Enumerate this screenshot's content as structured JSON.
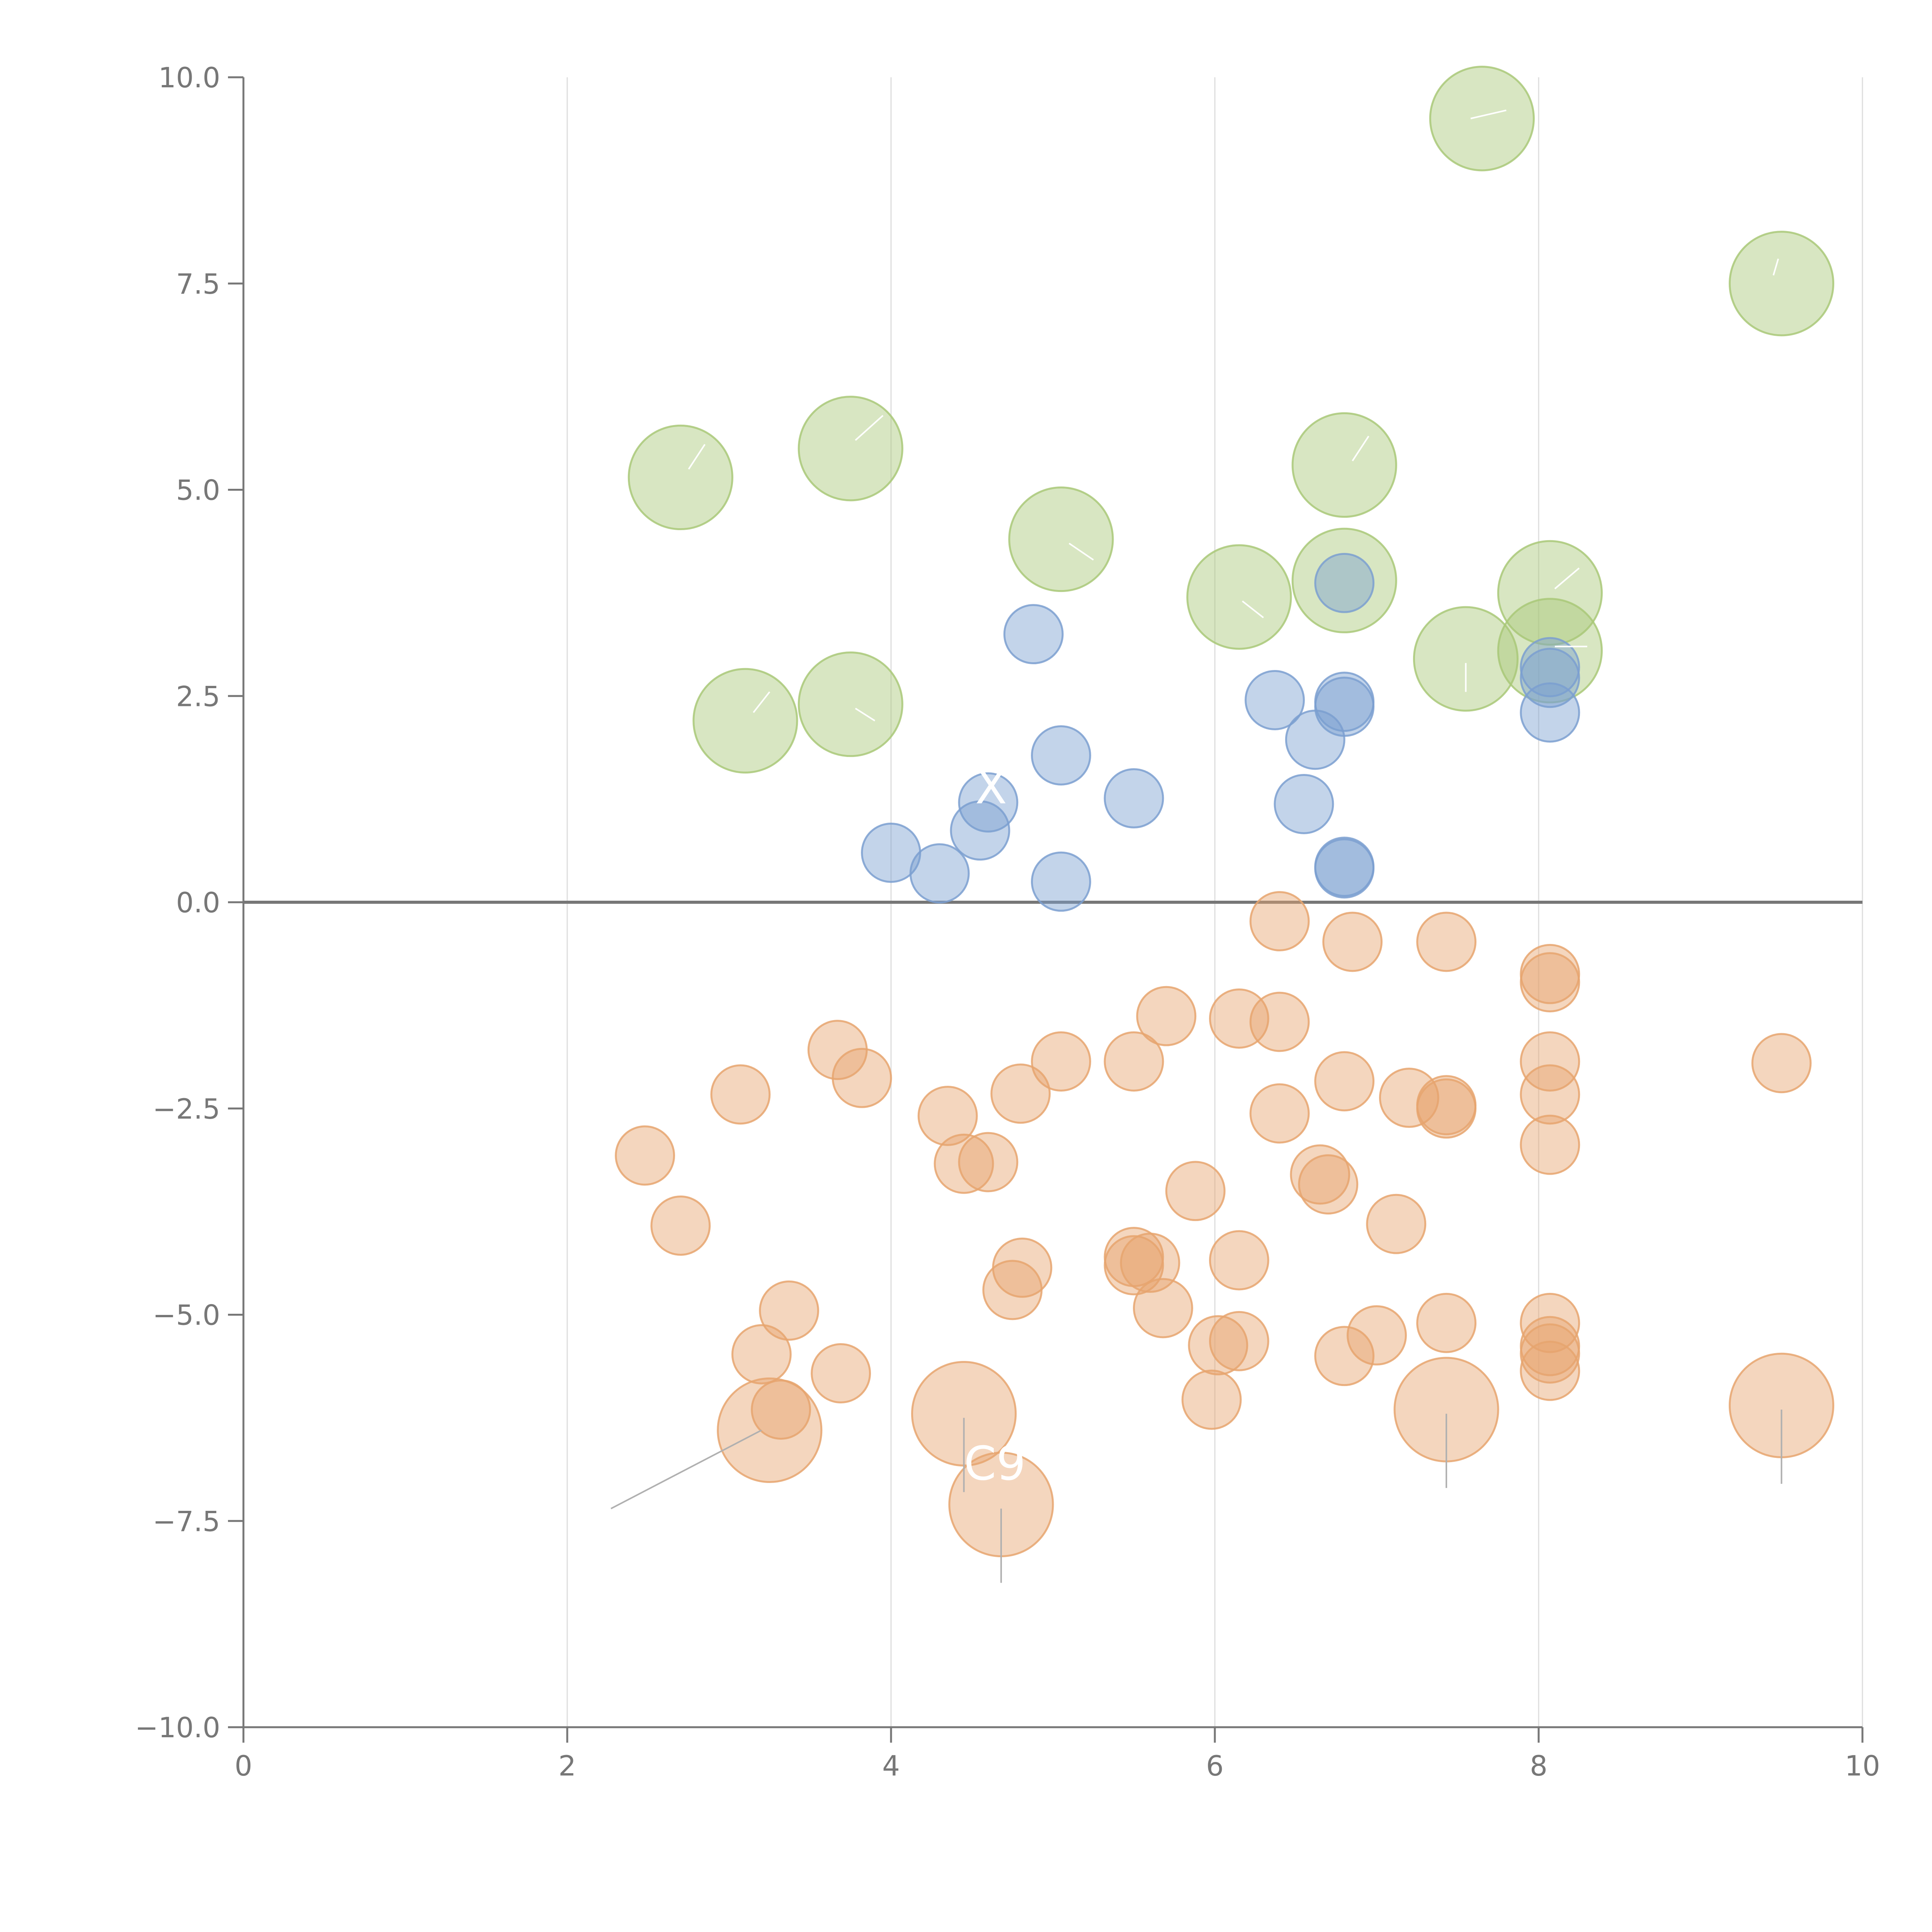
{
  "chart_data": {
    "type": "scatter",
    "title": "",
    "xlabel": "",
    "ylabel": "",
    "xlim": [
      0,
      10
    ],
    "ylim": [
      -10,
      10
    ],
    "x_ticks": [
      "0",
      "2",
      "4",
      "6",
      "8",
      "10"
    ],
    "y_ticks": [
      "10.0",
      "7.5",
      "5.0",
      "2.5",
      "0.0",
      "−2.5",
      "−5.0",
      "−7.5",
      "−10.0"
    ],
    "y_tick_values": [
      10,
      7.5,
      5,
      2.5,
      0,
      -2.5,
      -5,
      -7.5,
      -10
    ],
    "x_tick_values": [
      0,
      2,
      4,
      6,
      8,
      10
    ],
    "grid_x": true,
    "zero_line": 0,
    "colors": {
      "green": "#a9c878",
      "blue": "#7b9fd0",
      "orange": "#e6a46e",
      "axis": "#777777",
      "grid": "#dddddd"
    },
    "series": [
      {
        "name": "green",
        "color": "#a9c878",
        "size": 3.2,
        "points": [
          [
            7.65,
            9.5
          ],
          [
            9.5,
            7.5
          ],
          [
            2.7,
            5.15
          ],
          [
            3.75,
            5.5
          ],
          [
            6.8,
            5.3
          ],
          [
            5.05,
            4.4
          ],
          [
            6.15,
            3.7
          ],
          [
            6.8,
            3.9
          ],
          [
            8.07,
            3.75
          ],
          [
            8.07,
            3.05
          ],
          [
            7.55,
            2.95
          ],
          [
            3.1,
            2.2
          ],
          [
            3.75,
            2.4
          ]
        ]
      },
      {
        "name": "blue",
        "color": "#7b9fd0",
        "size": 1.8,
        "points": [
          [
            6.8,
            3.87
          ],
          [
            4.88,
            3.25
          ],
          [
            8.07,
            2.85
          ],
          [
            8.07,
            2.72
          ],
          [
            6.37,
            2.45
          ],
          [
            6.8,
            2.43
          ],
          [
            6.8,
            2.37
          ],
          [
            6.62,
            1.97
          ],
          [
            8.07,
            2.3
          ],
          [
            5.05,
            1.78
          ],
          [
            5.5,
            1.26
          ],
          [
            4.6,
            1.21
          ],
          [
            6.55,
            1.19
          ],
          [
            4.55,
            0.87
          ],
          [
            4.0,
            0.6
          ],
          [
            4.3,
            0.35
          ],
          [
            5.05,
            0.25
          ],
          [
            6.8,
            0.43
          ],
          [
            6.8,
            0.41
          ]
        ]
      },
      {
        "name": "orange",
        "color": "#e6a46e",
        "size": 1.8,
        "points": [
          [
            6.4,
            -0.23
          ],
          [
            6.85,
            -0.48
          ],
          [
            7.43,
            -0.48
          ],
          [
            8.07,
            -0.87
          ],
          [
            8.07,
            -0.97
          ],
          [
            5.7,
            -1.38
          ],
          [
            6.15,
            -1.41
          ],
          [
            6.4,
            -1.45
          ],
          [
            3.67,
            -1.79
          ],
          [
            3.82,
            -2.13
          ],
          [
            5.05,
            -1.93
          ],
          [
            5.5,
            -1.93
          ],
          [
            8.07,
            -1.93
          ],
          [
            9.5,
            -1.95
          ],
          [
            3.07,
            -2.33
          ],
          [
            4.8,
            -2.32
          ],
          [
            6.8,
            -2.17
          ],
          [
            7.2,
            -2.37
          ],
          [
            8.07,
            -2.33
          ],
          [
            7.43,
            -2.46
          ],
          [
            7.43,
            -2.5
          ],
          [
            4.35,
            -2.59
          ],
          [
            6.4,
            -2.56
          ],
          [
            8.07,
            -2.94
          ],
          [
            2.48,
            -3.07
          ],
          [
            4.45,
            -3.17
          ],
          [
            4.6,
            -3.15
          ],
          [
            6.65,
            -3.3
          ],
          [
            6.7,
            -3.42
          ],
          [
            5.88,
            -3.5
          ],
          [
            2.7,
            -3.92
          ],
          [
            7.12,
            -3.9
          ],
          [
            5.5,
            -4.3
          ],
          [
            5.5,
            -4.4
          ],
          [
            5.6,
            -4.37
          ],
          [
            6.15,
            -4.34
          ],
          [
            4.81,
            -4.43
          ],
          [
            4.75,
            -4.7
          ],
          [
            3.37,
            -4.95
          ],
          [
            5.68,
            -4.92
          ],
          [
            7.43,
            -5.1
          ],
          [
            8.07,
            -5.1
          ],
          [
            7.0,
            -5.25
          ],
          [
            8.07,
            -5.38
          ],
          [
            6.02,
            -5.37
          ],
          [
            6.15,
            -5.32
          ],
          [
            3.2,
            -5.48
          ],
          [
            6.8,
            -5.5
          ],
          [
            8.07,
            -5.47
          ],
          [
            8.07,
            -5.68
          ],
          [
            3.69,
            -5.71
          ],
          [
            5.98,
            -6.03
          ],
          [
            3.32,
            -6.15
          ]
        ]
      },
      {
        "name": "orange-large",
        "color": "#e6a46e",
        "size": 3.2,
        "points": [
          [
            3.25,
            -6.4
          ],
          [
            4.45,
            -6.2
          ],
          [
            7.43,
            -6.15
          ],
          [
            9.5,
            -6.1
          ],
          [
            4.68,
            -7.3
          ]
        ]
      }
    ],
    "annotations": [
      {
        "text": "C9",
        "x": 4.45,
        "y": -7.0,
        "color": "#ffffff"
      },
      {
        "text": "X",
        "x": 4.52,
        "y": 1.2,
        "color": "#ffffff"
      }
    ],
    "leader_lines": [
      {
        "from": [
          3.2,
          -6.4
        ],
        "to": [
          2.27,
          -7.35
        ],
        "color": "#b0b0b0"
      },
      {
        "from": [
          4.45,
          -6.25
        ],
        "to": [
          4.45,
          -7.15
        ],
        "color": "#b0b0b0"
      },
      {
        "from": [
          4.68,
          -7.35
        ],
        "to": [
          4.68,
          -8.25
        ],
        "color": "#b0b0b0"
      },
      {
        "from": [
          7.43,
          -6.2
        ],
        "to": [
          7.43,
          -7.1
        ],
        "color": "#b0b0b0"
      },
      {
        "from": [
          9.5,
          -6.15
        ],
        "to": [
          9.5,
          -7.05
        ],
        "color": "#b0b0b0"
      },
      {
        "from": [
          7.58,
          9.5
        ],
        "to": [
          7.8,
          9.6
        ],
        "color": "#ffffff"
      },
      {
        "from": [
          9.48,
          7.8
        ],
        "to": [
          9.45,
          7.6
        ],
        "color": "#ffffff"
      },
      {
        "from": [
          2.75,
          5.25
        ],
        "to": [
          2.85,
          5.55
        ],
        "color": "#ffffff"
      },
      {
        "from": [
          3.78,
          5.6
        ],
        "to": [
          3.95,
          5.9
        ],
        "color": "#ffffff"
      },
      {
        "from": [
          6.85,
          5.35
        ],
        "to": [
          6.95,
          5.65
        ],
        "color": "#ffffff"
      },
      {
        "from": [
          5.1,
          4.35
        ],
        "to": [
          5.25,
          4.15
        ],
        "color": "#ffffff"
      },
      {
        "from": [
          6.17,
          3.65
        ],
        "to": [
          6.3,
          3.45
        ],
        "color": "#ffffff"
      },
      {
        "from": [
          8.1,
          3.8
        ],
        "to": [
          8.25,
          4.05
        ],
        "color": "#ffffff"
      },
      {
        "from": [
          8.1,
          3.1
        ],
        "to": [
          8.3,
          3.1
        ],
        "color": "#ffffff"
      },
      {
        "from": [
          7.55,
          2.9
        ],
        "to": [
          7.55,
          2.55
        ],
        "color": "#ffffff"
      },
      {
        "from": [
          3.15,
          2.3
        ],
        "to": [
          3.25,
          2.55
        ],
        "color": "#ffffff"
      },
      {
        "from": [
          3.78,
          2.35
        ],
        "to": [
          3.9,
          2.2
        ],
        "color": "#ffffff"
      }
    ]
  }
}
